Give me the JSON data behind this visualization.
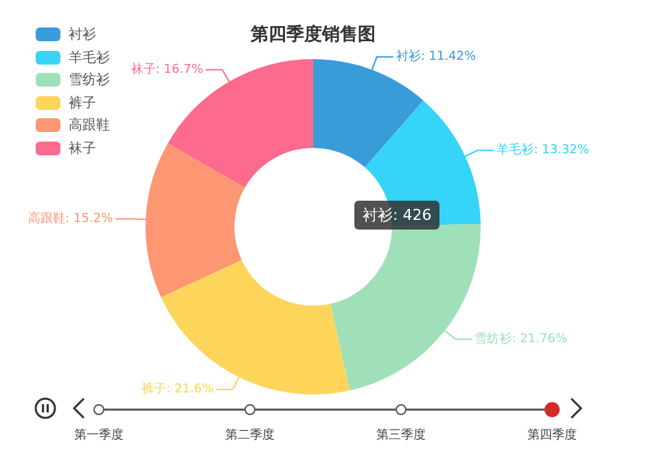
{
  "chart_data": {
    "type": "donut",
    "title": "第四季度销售图",
    "categories": [
      "衬衫",
      "羊毛衫",
      "雪纺衫",
      "裤子",
      "高跟鞋",
      "袜子"
    ],
    "values": [
      11.42,
      13.32,
      21.76,
      21.6,
      15.2,
      16.7
    ],
    "colors": [
      "#3a9bd9",
      "#36d4f8",
      "#9fe0b8",
      "#fdd55a",
      "#fd9673",
      "#fc6a8d"
    ],
    "value_labels": [
      "衬衫: 11.42%",
      "羊毛衫: 13.32%",
      "雪纺衫: 21.76%",
      "裤子: 21.6%",
      "高跟鞋: 15.2%",
      "袜子: 16.7%"
    ],
    "legend": "top left",
    "annotations": [
      "衬衫: 426",
      "第一季度",
      "第二季度",
      "第三季度",
      "第四季度"
    ]
  }
}
